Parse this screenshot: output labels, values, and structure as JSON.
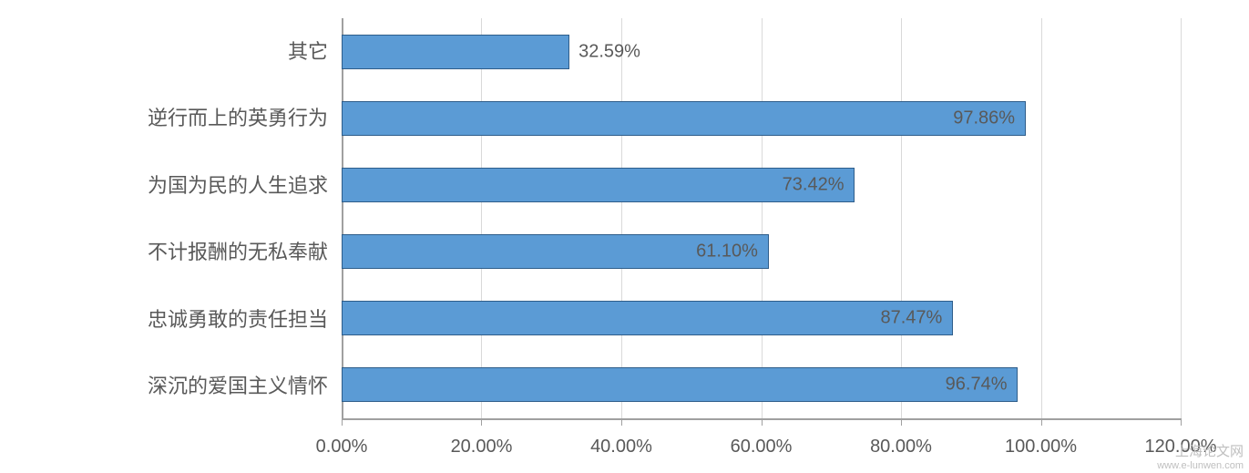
{
  "chart": {
    "type": "bar-horizontal",
    "background_color": "#ffffff",
    "bar_color": "#5b9bd5",
    "bar_border_color": "#2e5d8a",
    "grid_color": "#d9d9d9",
    "axis_color": "#a0a0a0",
    "text_color": "#595959",
    "label_fontsize": 22,
    "value_fontsize": 20,
    "xtick_fontsize": 20,
    "xlim_max_percent": 120.0,
    "bars": [
      {
        "label": "其它",
        "value_percent": 32.59,
        "value_text": "32.59%"
      },
      {
        "label": "逆行而上的英勇行为",
        "value_percent": 97.86,
        "value_text": "97.86%"
      },
      {
        "label": "为国为民的人生追求",
        "value_percent": 73.42,
        "value_text": "73.42%"
      },
      {
        "label": "不计报酬的无私奉献",
        "value_percent": 61.1,
        "value_text": "61.10%"
      },
      {
        "label": "忠诚勇敢的责任担当",
        "value_percent": 87.47,
        "value_text": "87.47%"
      },
      {
        "label": "深沉的爱国主义情怀",
        "value_percent": 96.74,
        "value_text": "96.74%"
      }
    ],
    "xticks": [
      {
        "value_percent": 0.0,
        "label": "0.00%"
      },
      {
        "value_percent": 20.0,
        "label": "20.00%"
      },
      {
        "value_percent": 40.0,
        "label": "40.00%"
      },
      {
        "value_percent": 60.0,
        "label": "60.00%"
      },
      {
        "value_percent": 80.0,
        "label": "80.00%"
      },
      {
        "value_percent": 100.0,
        "label": "100.00%"
      },
      {
        "value_percent": 120.0,
        "label": "120.00%"
      }
    ]
  },
  "watermark": {
    "line1": "上海论文网",
    "line2": "www.e-lunwen.com",
    "color": "#bfbfbf"
  }
}
